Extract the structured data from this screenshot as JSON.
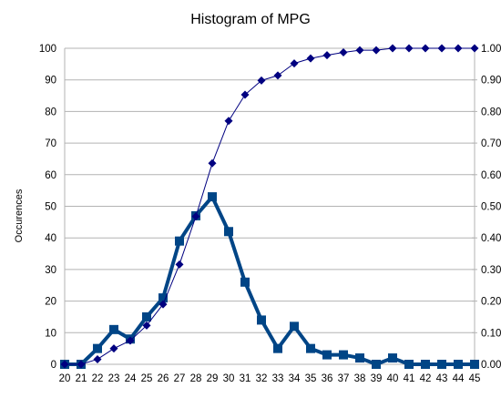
{
  "chart_data": {
    "type": "line",
    "title": "Histogram of MPG",
    "xlabel": "",
    "ylabel": "Occurences",
    "categories": [
      "20",
      "21",
      "22",
      "23",
      "24",
      "25",
      "26",
      "27",
      "28",
      "29",
      "30",
      "31",
      "32",
      "33",
      "34",
      "35",
      "36",
      "37",
      "38",
      "39",
      "40",
      "41",
      "42",
      "43",
      "44",
      "45"
    ],
    "ylim": [
      0,
      100
    ],
    "yticks": [
      "0",
      "10",
      "20",
      "30",
      "40",
      "50",
      "60",
      "70",
      "80",
      "90",
      "100"
    ],
    "y2lim": [
      0,
      1
    ],
    "y2ticks": [
      "0.00",
      "0.10",
      "0.20",
      "0.30",
      "0.40",
      "0.50",
      "0.60",
      "0.70",
      "0.80",
      "0.90",
      "1.00"
    ],
    "grid": true,
    "legend": "none",
    "series": [
      {
        "axis": "left",
        "marker": "square",
        "color": "#004586",
        "values": [
          0,
          0,
          5,
          11,
          8,
          15,
          21,
          39,
          47,
          53,
          42,
          26,
          14,
          5,
          12,
          5,
          3,
          3,
          2,
          0,
          2,
          0,
          0,
          0,
          0,
          0
        ]
      },
      {
        "axis": "right",
        "marker": "diamond",
        "color": "#000080",
        "values": [
          0.0,
          0.0,
          0.016,
          0.05,
          0.075,
          0.123,
          0.19,
          0.316,
          0.468,
          0.636,
          0.77,
          0.853,
          0.898,
          0.914,
          0.952,
          0.968,
          0.978,
          0.987,
          0.994,
          0.994,
          1.0,
          1.0,
          1.0,
          1.0,
          1.0,
          1.0
        ]
      }
    ]
  }
}
